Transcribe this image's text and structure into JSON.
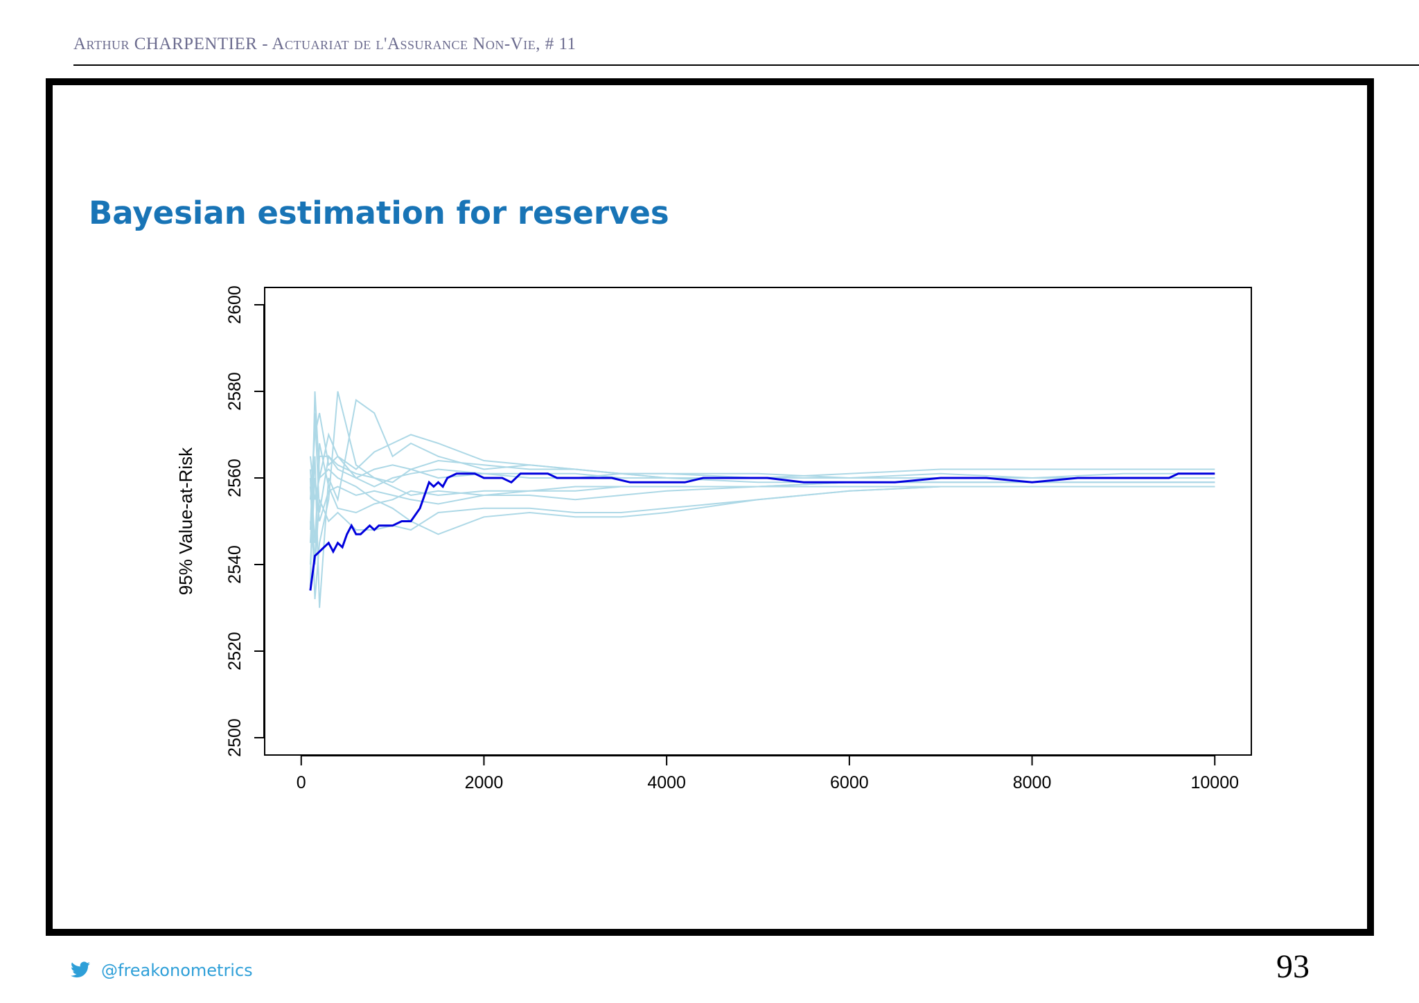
{
  "header": {
    "running_head": "Arthur CHARPENTIER - Actuariat de l'Assurance Non-Vie, # 11"
  },
  "slide": {
    "title": "Bayesian estimation for reserves",
    "page_number": "93"
  },
  "footer": {
    "handle": "@freakonometrics",
    "icon": "twitter-bird-icon"
  },
  "colors": {
    "title": "#1874b6",
    "main_series": "#0000dd",
    "other_series": "#add8e6",
    "footer": "#2e9fd8"
  },
  "chart_data": {
    "type": "line",
    "title": "",
    "xlabel": "",
    "ylabel": "95% Value-at-Risk",
    "xlim": [
      -400,
      10400
    ],
    "ylim": [
      2496,
      2604
    ],
    "x_ticks": [
      "0",
      "2000",
      "4000",
      "6000",
      "8000",
      "10000"
    ],
    "y_ticks": [
      "2500",
      "2520",
      "2540",
      "2560",
      "2580",
      "2600"
    ],
    "grid": false,
    "legend": "none",
    "main_series": {
      "x": [
        100,
        150,
        200,
        250,
        300,
        350,
        400,
        450,
        500,
        550,
        600,
        650,
        700,
        750,
        800,
        850,
        900,
        1000,
        1100,
        1200,
        1300,
        1350,
        1400,
        1450,
        1500,
        1550,
        1600,
        1700,
        1800,
        1900,
        2000,
        2100,
        2200,
        2300,
        2400,
        2500,
        2600,
        2700,
        2800,
        2900,
        3000,
        3200,
        3400,
        3600,
        3700,
        3800,
        4000,
        4200,
        4400,
        4500,
        4700,
        5000,
        5100,
        5500,
        6000,
        6500,
        7000,
        7100,
        7500,
        8000,
        8500,
        9000,
        9500,
        9600,
        10000
      ],
      "values": [
        2534,
        2542,
        2543,
        2544,
        2545,
        2543,
        2545,
        2544,
        2547,
        2549,
        2547,
        2547,
        2548,
        2549,
        2548,
        2549,
        2549,
        2549,
        2550,
        2550,
        2553,
        2556,
        2559,
        2558,
        2559,
        2558,
        2560,
        2561,
        2561,
        2561,
        2560,
        2560,
        2560,
        2559,
        2561,
        2561,
        2561,
        2561,
        2560,
        2560,
        2560,
        2560,
        2560,
        2559,
        2559,
        2559,
        2559,
        2559,
        2560,
        2560,
        2560,
        2560,
        2560,
        2559,
        2559,
        2559,
        2560,
        2560,
        2560,
        2559,
        2560,
        2560,
        2560,
        2561,
        2561
      ]
    },
    "other_series": [
      {
        "x": [
          100,
          150,
          200,
          300,
          400,
          600,
          800,
          1000,
          1200,
          1500,
          2000,
          2500,
          3000,
          3500,
          4000,
          5000,
          6000,
          7000,
          8000,
          9000,
          10000
        ],
        "values": [
          2535,
          2580,
          2560,
          2570,
          2565,
          2560,
          2562,
          2563,
          2562,
          2560,
          2561,
          2560,
          2560,
          2561,
          2561,
          2560,
          2560,
          2560,
          2560,
          2561,
          2561
        ]
      },
      {
        "x": [
          100,
          150,
          200,
          300,
          400,
          600,
          800,
          1000,
          1200,
          1500,
          2000,
          2500,
          3000,
          3500,
          4000,
          5000,
          6000,
          7000,
          8000,
          9000,
          10000
        ],
        "values": [
          2560,
          2532,
          2545,
          2555,
          2580,
          2563,
          2560,
          2558,
          2556,
          2557,
          2556,
          2557,
          2557,
          2558,
          2558,
          2558,
          2559,
          2559,
          2559,
          2559,
          2559
        ]
      },
      {
        "x": [
          100,
          150,
          200,
          300,
          400,
          600,
          800,
          1000,
          1200,
          1500,
          2000,
          2500,
          3000,
          3500,
          4000,
          5000,
          6000,
          7000,
          8000,
          9000,
          10000
        ],
        "values": [
          2545,
          2565,
          2530,
          2560,
          2555,
          2578,
          2575,
          2565,
          2568,
          2565,
          2562,
          2563,
          2562,
          2561,
          2561,
          2561,
          2560,
          2561,
          2560,
          2560,
          2560
        ]
      },
      {
        "x": [
          100,
          150,
          200,
          300,
          400,
          600,
          800,
          1000,
          1200,
          1500,
          2000,
          2500,
          3000,
          3500,
          4000,
          5000,
          6000,
          7000,
          8000,
          9000,
          10000
        ],
        "values": [
          2550,
          2540,
          2555,
          2550,
          2552,
          2548,
          2548,
          2549,
          2548,
          2552,
          2553,
          2553,
          2552,
          2552,
          2553,
          2555,
          2557,
          2558,
          2558,
          2558,
          2558
        ]
      },
      {
        "x": [
          100,
          150,
          200,
          300,
          400,
          600,
          800,
          1000,
          1200,
          1500,
          2000,
          2500,
          3000,
          3500,
          4000,
          5000,
          6000,
          7000,
          8000,
          9000,
          10000
        ],
        "values": [
          2565,
          2555,
          2560,
          2562,
          2560,
          2558,
          2555,
          2553,
          2550,
          2547,
          2551,
          2552,
          2551,
          2551,
          2552,
          2555,
          2557,
          2558,
          2558,
          2558,
          2558
        ]
      },
      {
        "x": [
          100,
          150,
          200,
          300,
          400,
          600,
          800,
          1000,
          1200,
          1500,
          2000,
          2500,
          3000,
          3500,
          4000,
          5000,
          6000,
          7000,
          8000,
          9000,
          10000
        ],
        "values": [
          2555,
          2570,
          2575,
          2563,
          2565,
          2562,
          2566,
          2568,
          2570,
          2568,
          2564,
          2563,
          2562,
          2561,
          2560,
          2560,
          2561,
          2562,
          2562,
          2562,
          2562
        ]
      },
      {
        "x": [
          100,
          150,
          200,
          300,
          400,
          600,
          800,
          1000,
          1200,
          1500,
          2000,
          2500,
          3000,
          3500,
          4000,
          5000,
          6000,
          7000,
          8000,
          9000,
          10000
        ],
        "values": [
          2540,
          2560,
          2550,
          2557,
          2558,
          2556,
          2557,
          2556,
          2555,
          2554,
          2556,
          2556,
          2555,
          2556,
          2557,
          2558,
          2559,
          2559,
          2559,
          2559,
          2559
        ]
      },
      {
        "x": [
          100,
          150,
          200,
          300,
          400,
          600,
          800,
          1000,
          1200,
          1500,
          2000,
          2500,
          3000,
          3500,
          4000,
          5000,
          6000,
          7000,
          8000,
          9000,
          10000
        ],
        "values": [
          2562,
          2545,
          2565,
          2565,
          2563,
          2561,
          2560,
          2559,
          2562,
          2564,
          2563,
          2562,
          2562,
          2561,
          2560,
          2560,
          2560,
          2560,
          2560,
          2560,
          2560
        ]
      },
      {
        "x": [
          100,
          150,
          200,
          300,
          400,
          600,
          800,
          1000,
          1200,
          1500,
          2000,
          2500,
          3000,
          3500,
          4000,
          5000,
          6000,
          7000,
          8000,
          9000,
          10000
        ],
        "values": [
          2558,
          2540,
          2568,
          2558,
          2553,
          2552,
          2554,
          2555,
          2557,
          2556,
          2557,
          2557,
          2558,
          2558,
          2558,
          2558,
          2558,
          2558,
          2558,
          2558,
          2558
        ]
      },
      {
        "x": [
          100,
          150,
          200,
          300,
          400,
          600,
          800,
          1000,
          1200,
          1500,
          2000,
          2500,
          3000,
          3500,
          4000,
          5000,
          6000,
          7000,
          8000,
          9000,
          10000
        ],
        "values": [
          2548,
          2575,
          2552,
          2565,
          2562,
          2560,
          2558,
          2560,
          2561,
          2562,
          2561,
          2561,
          2561,
          2560,
          2560,
          2559,
          2559,
          2559,
          2559,
          2559,
          2559
        ]
      }
    ]
  }
}
